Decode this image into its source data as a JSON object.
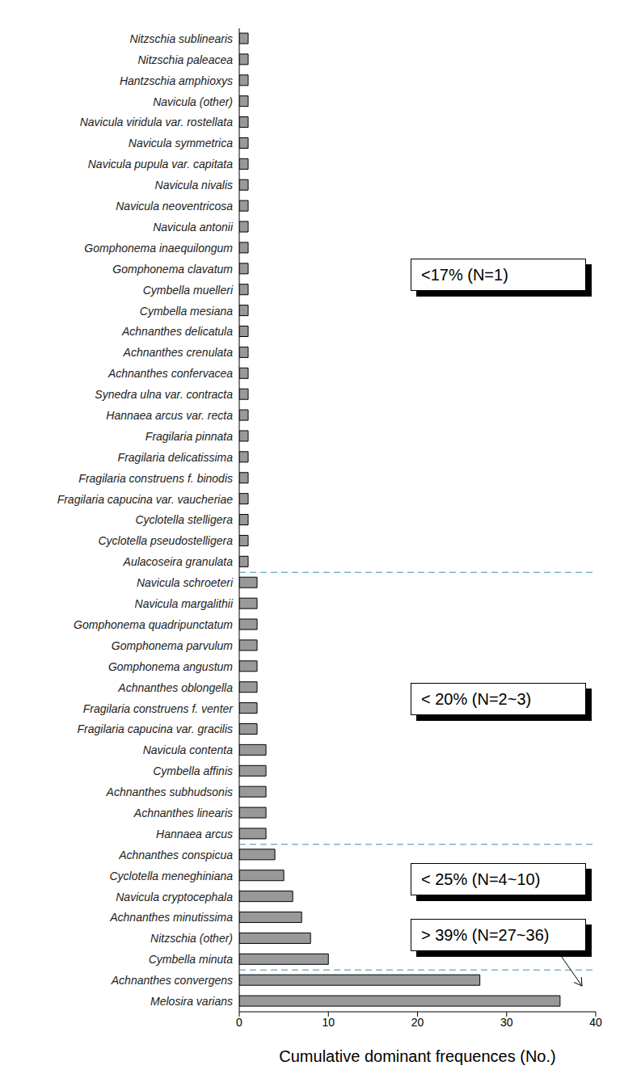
{
  "chart_data": {
    "type": "bar",
    "orientation": "horizontal",
    "xlabel": "Cumulative dominant frequences (No.)",
    "categories": [
      "Nitzschia sublinearis",
      "Nitzschia paleacea",
      "Hantzschia amphioxys",
      "Navicula (other)",
      "Navicula viridula var. rostellata",
      "Navicula symmetrica",
      "Navicula pupula var. capitata",
      "Navicula nivalis",
      "Navicula neoventricosa",
      "Navicula antonii",
      "Gomphonema inaequilongum",
      "Gomphonema clavatum",
      "Cymbella muelleri",
      "Cymbella mesiana",
      "Achnanthes delicatula",
      "Achnanthes crenulata",
      "Achnanthes confervacea",
      "Synedra ulna var. contracta",
      "Hannaea arcus var. recta",
      "Fragilaria pinnata",
      "Fragilaria delicatissima",
      "Fragilaria construens f. binodis",
      "Fragilaria capucina var. vaucheriae",
      "Cyclotella stelligera",
      "Cyclotella pseudostelligera",
      "Aulacoseira granulata",
      "Navicula schroeteri",
      "Navicula margalithii",
      "Gomphonema quadripunctatum",
      "Gomphonema parvulum",
      "Gomphonema angustum",
      "Achnanthes oblongella",
      "Fragilaria construens f. venter",
      "Fragilaria capucina var. gracilis",
      "Navicula contenta",
      "Cymbella affinis",
      "Achnanthes subhudsonis",
      "Achnanthes linearis",
      "Hannaea arcus",
      "Achnanthes conspicua",
      "Cyclotella meneghiniana",
      "Navicula cryptocephala",
      "Achnanthes minutissima",
      "Nitzschia (other)",
      "Cymbella minuta",
      "Achnanthes convergens",
      "Melosira varians"
    ],
    "values": [
      1,
      1,
      1,
      1,
      1,
      1,
      1,
      1,
      1,
      1,
      1,
      1,
      1,
      1,
      1,
      1,
      1,
      1,
      1,
      1,
      1,
      1,
      1,
      1,
      1,
      1,
      2,
      2,
      2,
      2,
      2,
      2,
      2,
      2,
      3,
      3,
      3,
      3,
      3,
      4,
      5,
      6,
      7,
      8,
      10,
      27,
      36
    ],
    "color": "#999999",
    "xlim": [
      0,
      40
    ],
    "xticks": [
      0,
      10,
      20,
      30,
      40
    ],
    "grid": false,
    "annotations": [
      {
        "text": "<17% (N=1)",
        "n": [
          1,
          1
        ]
      },
      {
        "text": "< 20% (N=2~3)",
        "n": [
          2,
          3
        ]
      },
      {
        "text": "< 25% (N=4~10)",
        "n": [
          4,
          10
        ]
      },
      {
        "text": "> 39% (N=27~36)",
        "n": [
          27,
          36
        ]
      }
    ]
  }
}
